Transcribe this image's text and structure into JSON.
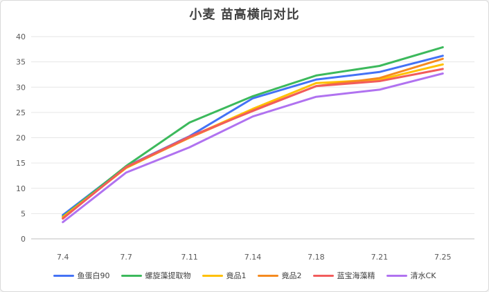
{
  "chart_data": {
    "type": "line",
    "title": "小麦  苗高横向对比",
    "xlabel": "",
    "ylabel": "",
    "categories": [
      "7.4",
      "7.7",
      "7.11",
      "7.14",
      "7.18",
      "7.21",
      "7.25"
    ],
    "ylim": [
      0,
      40
    ],
    "yticks": [
      0,
      5,
      10,
      15,
      20,
      25,
      30,
      35,
      40
    ],
    "grid": true,
    "legend_position": "bottom",
    "series": [
      {
        "name": "鱼蛋白90",
        "color": "#4472F5",
        "values": [
          4.7,
          14.3,
          20.3,
          27.8,
          31.5,
          33.0,
          36.2
        ]
      },
      {
        "name": "螺旋藻提取物",
        "color": "#3CB95C",
        "values": [
          4.4,
          14.4,
          23.0,
          28.2,
          32.3,
          34.2,
          37.9
        ]
      },
      {
        "name": "竟品1",
        "color": "#FFC000",
        "values": [
          4.3,
          14.0,
          20.1,
          25.7,
          30.8,
          31.5,
          34.5
        ]
      },
      {
        "name": "竟品2",
        "color": "#F58A1F",
        "values": [
          4.1,
          14.1,
          20.0,
          25.4,
          30.2,
          31.8,
          35.6
        ]
      },
      {
        "name": "蓝宝海藻精",
        "color": "#F25C5C",
        "values": [
          4.0,
          14.2,
          20.2,
          25.3,
          30.2,
          31.2,
          33.6
        ]
      },
      {
        "name": "清水CK",
        "color": "#B072F0",
        "values": [
          3.3,
          13.1,
          18.1,
          24.2,
          28.1,
          29.5,
          32.7
        ]
      }
    ]
  }
}
